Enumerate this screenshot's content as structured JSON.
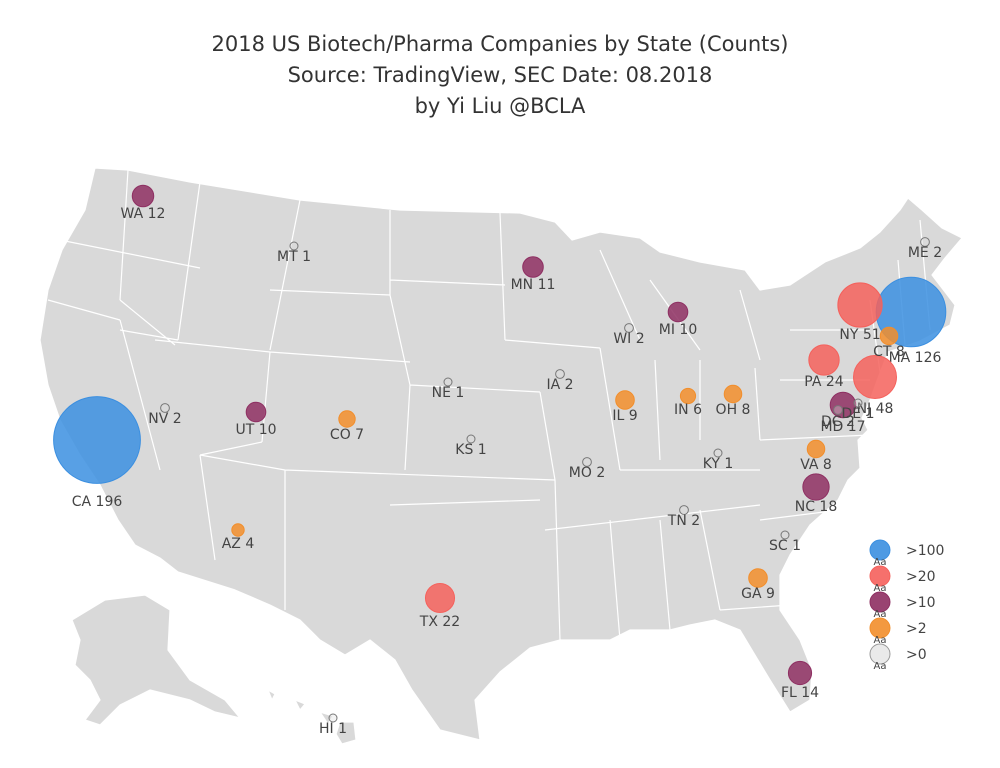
{
  "title": {
    "line1": "2018 US Biotech/Pharma Companies by State (Counts)",
    "line2": "Source: TradingView, SEC  Date: 08.2018",
    "line3": "by Yi Liu @BCLA"
  },
  "colors": {
    "gt100": "#3b8fe0",
    "gt20": "#f5615c",
    "gt10": "#8e2f62",
    "gt2": "#f28e2b",
    "gt0": "#dcdcdc",
    "land": "#d9d9d9"
  },
  "legend": [
    {
      "label": ">100",
      "tier": "gt100",
      "mark": "Aa"
    },
    {
      "label": ">20",
      "tier": "gt20",
      "mark": "Aa"
    },
    {
      "label": ">10",
      "tier": "gt10",
      "mark": "Aa"
    },
    {
      "label": ">2",
      "tier": "gt2",
      "mark": "Aa"
    },
    {
      "label": ">0",
      "tier": "gt0",
      "mark": "Aa"
    }
  ],
  "states": [
    {
      "abbr": "CA",
      "count": 196,
      "label": "CA 196",
      "tier": "gt100"
    },
    {
      "abbr": "MA",
      "count": 126,
      "label": "MA 126",
      "tier": "gt100"
    },
    {
      "abbr": "NY",
      "count": 51,
      "label": "NY 51",
      "tier": "gt20"
    },
    {
      "abbr": "NJ",
      "count": 48,
      "label": "NJ 48",
      "tier": "gt20"
    },
    {
      "abbr": "PA",
      "count": 24,
      "label": "PA 24",
      "tier": "gt20"
    },
    {
      "abbr": "TX",
      "count": 22,
      "label": "TX 22",
      "tier": "gt20"
    },
    {
      "abbr": "MD",
      "count": 17,
      "label": "MD 17",
      "tier": "gt10"
    },
    {
      "abbr": "NC",
      "count": 18,
      "label": "NC 18",
      "tier": "gt10"
    },
    {
      "abbr": "FL",
      "count": 14,
      "label": "FL 14",
      "tier": "gt10"
    },
    {
      "abbr": "WA",
      "count": 12,
      "label": "WA 12",
      "tier": "gt10"
    },
    {
      "abbr": "MN",
      "count": 11,
      "label": "MN 11",
      "tier": "gt10"
    },
    {
      "abbr": "MI",
      "count": 10,
      "label": "MI 10",
      "tier": "gt10"
    },
    {
      "abbr": "UT",
      "count": 10,
      "label": "UT 10",
      "tier": "gt10"
    },
    {
      "abbr": "IL",
      "count": 9,
      "label": "IL 9",
      "tier": "gt2"
    },
    {
      "abbr": "GA",
      "count": 9,
      "label": "GA 9",
      "tier": "gt2"
    },
    {
      "abbr": "OH",
      "count": 8,
      "label": "OH 8",
      "tier": "gt2"
    },
    {
      "abbr": "VA",
      "count": 8,
      "label": "VA 8",
      "tier": "gt2"
    },
    {
      "abbr": "CT",
      "count": 8,
      "label": "CT 8",
      "tier": "gt2"
    },
    {
      "abbr": "CO",
      "count": 7,
      "label": "CO 7",
      "tier": "gt2"
    },
    {
      "abbr": "IN",
      "count": 6,
      "label": "IN 6",
      "tier": "gt2"
    },
    {
      "abbr": "AZ",
      "count": 4,
      "label": "AZ 4",
      "tier": "gt2"
    },
    {
      "abbr": "DC",
      "count": 2,
      "label": "DC 2",
      "tier": "gt0"
    },
    {
      "abbr": "NV",
      "count": 2,
      "label": "NV 2",
      "tier": "gt0"
    },
    {
      "abbr": "WI",
      "count": 2,
      "label": "WI 2",
      "tier": "gt0"
    },
    {
      "abbr": "IA",
      "count": 2,
      "label": "IA 2",
      "tier": "gt0"
    },
    {
      "abbr": "MO",
      "count": 2,
      "label": "MO 2",
      "tier": "gt0"
    },
    {
      "abbr": "TN",
      "count": 2,
      "label": "TN 2",
      "tier": "gt0"
    },
    {
      "abbr": "ME",
      "count": 2,
      "label": "ME 2",
      "tier": "gt0"
    },
    {
      "abbr": "DE",
      "count": 1,
      "label": "DE 1",
      "tier": "gt0"
    },
    {
      "abbr": "MT",
      "count": 1,
      "label": "MT 1",
      "tier": "gt0"
    },
    {
      "abbr": "NE",
      "count": 1,
      "label": "NE 1",
      "tier": "gt0"
    },
    {
      "abbr": "KS",
      "count": 1,
      "label": "KS 1",
      "tier": "gt0"
    },
    {
      "abbr": "KY",
      "count": 1,
      "label": "KY 1",
      "tier": "gt0"
    },
    {
      "abbr": "SC",
      "count": 1,
      "label": "SC 1",
      "tier": "gt0"
    },
    {
      "abbr": "HI",
      "count": 1,
      "label": "HI 1",
      "tier": "gt0"
    }
  ]
}
